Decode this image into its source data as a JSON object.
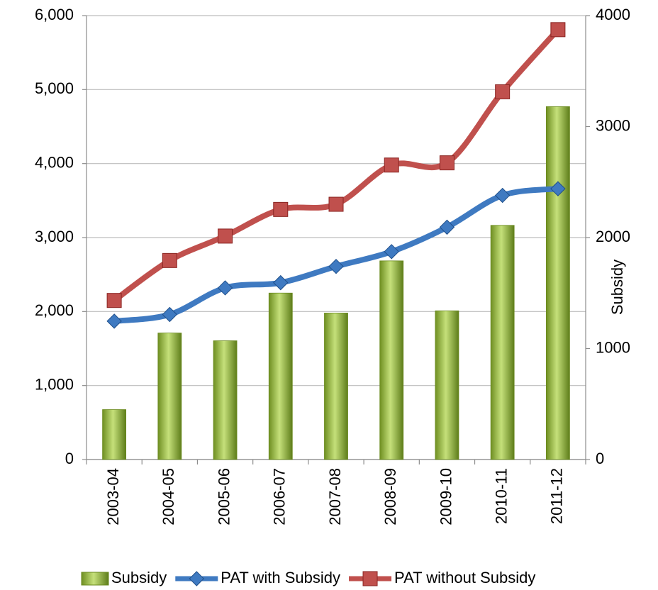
{
  "chart_data": {
    "type": "bar-line",
    "categories": [
      "2003-04",
      "2004-05",
      "2005-06",
      "2006-07",
      "2007-08",
      "2008-09",
      "2009-10",
      "2010-11",
      "2011-12"
    ],
    "series": [
      {
        "name": "Subsidy",
        "type": "bar",
        "axis": "y2",
        "color": "#8db03a",
        "values": [
          450,
          1140,
          1070,
          1500,
          1320,
          1790,
          1340,
          2110,
          3180
        ]
      },
      {
        "name": "PAT with Subsidy",
        "type": "line",
        "color": "#3f7ac1",
        "marker": "diamond",
        "values": [
          1870,
          1960,
          2320,
          2390,
          2610,
          2810,
          3140,
          3570,
          3660
        ]
      },
      {
        "name": "PAT without Subsidy",
        "type": "line",
        "color": "#c0504d",
        "marker": "square",
        "values": [
          2150,
          2690,
          3020,
          3380,
          3450,
          3980,
          4010,
          4970,
          5810
        ]
      }
    ],
    "ylim": [
      0,
      6000
    ],
    "yticks": [
      0,
      {
        "value": 1000,
        "label": "1,000"
      },
      {
        "value": 2000,
        "label": "2,000"
      },
      {
        "value": 3000,
        "label": "3,000"
      },
      {
        "value": 4000,
        "label": "4,000"
      },
      {
        "value": 5000,
        "label": "5,000"
      },
      {
        "value": 6000,
        "label": "6,000"
      }
    ],
    "y2lim": [
      0,
      4000
    ],
    "y2ticks": [
      0,
      1000,
      2000,
      3000,
      4000
    ],
    "y2_label": "Subsidy",
    "grid": true,
    "legend": "bottom"
  }
}
